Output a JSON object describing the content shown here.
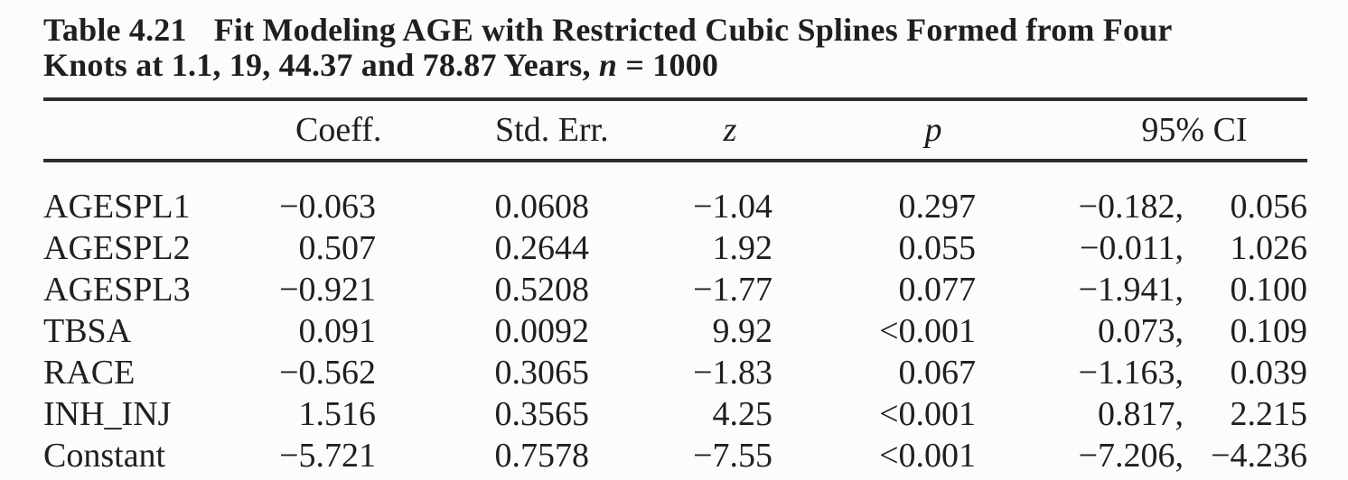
{
  "page": {
    "background": "#fcfcfc",
    "text_color": "#1f1f1f",
    "rule_color": "#2d2d2d"
  },
  "caption": {
    "table_number": "Table 4.21",
    "title_line1": "Fit Modeling AGE with Restricted Cubic Splines Formed from Four",
    "title_line2_pre": "Knots at 1.1, 19, 44.37 and 78.87 Years, ",
    "title_line2_var": "n",
    "title_line2_post": " = 1000"
  },
  "table": {
    "headers": {
      "label": "",
      "coeff": "Coeff.",
      "std_err": "Std. Err.",
      "z": "z",
      "p": "p",
      "ci": "95% CI"
    },
    "rows": [
      {
        "label": "AGESPL1",
        "coeff": "−0.063",
        "std_err": "0.0608",
        "z": "−1.04",
        "p": "0.297",
        "ci_low": "−0.182,",
        "ci_high": "0.056"
      },
      {
        "label": "AGESPL2",
        "coeff": "0.507",
        "std_err": "0.2644",
        "z": "1.92",
        "p": "0.055",
        "ci_low": "−0.011,",
        "ci_high": "1.026"
      },
      {
        "label": "AGESPL3",
        "coeff": "−0.921",
        "std_err": "0.5208",
        "z": "−1.77",
        "p": "0.077",
        "ci_low": "−1.941,",
        "ci_high": "0.100"
      },
      {
        "label": "TBSA",
        "coeff": "0.091",
        "std_err": "0.0092",
        "z": "9.92",
        "p": "<0.001",
        "ci_low": "0.073,",
        "ci_high": "0.109"
      },
      {
        "label": "RACE",
        "coeff": "−0.562",
        "std_err": "0.3065",
        "z": "−1.83",
        "p": "0.067",
        "ci_low": "−1.163,",
        "ci_high": "0.039"
      },
      {
        "label": "INH_INJ",
        "coeff": "1.516",
        "std_err": "0.3565",
        "z": "4.25",
        "p": "<0.001",
        "ci_low": "0.817,",
        "ci_high": "2.215"
      },
      {
        "label": "Constant",
        "coeff": "−5.721",
        "std_err": "0.7578",
        "z": "−7.55",
        "p": "<0.001",
        "ci_low": "−7.206,",
        "ci_high": "−4.236"
      }
    ]
  }
}
